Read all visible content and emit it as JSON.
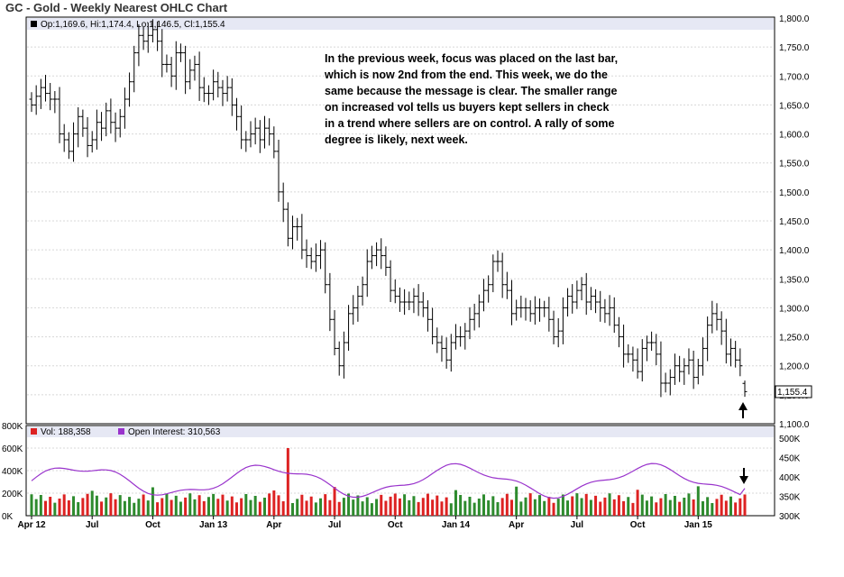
{
  "title": "GC - Gold - Weekly Nearest OHLC Chart",
  "price_legend": "Op:1,169.6, Hi:1,174.4, Lo:1,146.5, Cl:1,155.4",
  "last_price_label": "1,155.4",
  "vol_legend": "Vol: 188,358",
  "oi_legend": "Open Interest: 310,563",
  "annotation_lines": [
    "In the previous week, focus was placed on the last bar,",
    "which is now 2nd from the end.  This week, we do the",
    "same because the message is clear.  The smaller range",
    "on increased vol tells us buyers kept sellers in check",
    "in a trend where sellers are on control.  A rally of some",
    "degree is likely, next week."
  ],
  "colors": {
    "price_bar": "#000000",
    "vol_up": "#2e8b2e",
    "vol_down": "#dd2222",
    "open_interest": "#9933cc",
    "grid": "#d8d8d8",
    "legend_band": "#e6e8f4"
  },
  "chart_data": [
    {
      "type": "ohlc",
      "title": "GC - Gold - Weekly Nearest OHLC Chart",
      "ylim": [
        1100,
        1800
      ],
      "yticks": [
        "1,800.0",
        "1,750.0",
        "1,700.0",
        "1,650.0",
        "1,600.0",
        "1,550.0",
        "1,500.0",
        "1,450.0",
        "1,400.0",
        "1,350.0",
        "1,300.0",
        "1,250.0",
        "1,200.0",
        "1,150.0",
        "1,100.0"
      ],
      "x_labels": [
        "Apr 12",
        "Jul",
        "Oct",
        "Jan 13",
        "Apr",
        "Jul",
        "Oct",
        "Jan 14",
        "Apr",
        "Jul",
        "Oct",
        "Jan 15"
      ],
      "x_label_week_index": [
        0,
        13,
        26,
        39,
        52,
        65,
        78,
        91,
        104,
        117,
        130,
        143
      ],
      "last_bar": {
        "open": 1169.6,
        "high": 1174.4,
        "low": 1146.5,
        "close": 1155.4
      },
      "closes": [
        1650,
        1665,
        1680,
        1670,
        1660,
        1660,
        1600,
        1590,
        1570,
        1600,
        1630,
        1610,
        1580,
        1590,
        1620,
        1610,
        1640,
        1620,
        1610,
        1630,
        1660,
        1690,
        1740,
        1770,
        1760,
        1770,
        1780,
        1760,
        1720,
        1720,
        1700,
        1740,
        1740,
        1690,
        1710,
        1720,
        1680,
        1670,
        1670,
        1690,
        1680,
        1670,
        1680,
        1650,
        1630,
        1590,
        1590,
        1600,
        1610,
        1590,
        1610,
        1600,
        1570,
        1500,
        1470,
        1420,
        1440,
        1440,
        1400,
        1390,
        1380,
        1390,
        1400,
        1340,
        1280,
        1230,
        1200,
        1240,
        1290,
        1300,
        1320,
        1340,
        1380,
        1390,
        1400,
        1390,
        1370,
        1330,
        1320,
        1310,
        1310,
        1310,
        1320,
        1310,
        1300,
        1280,
        1250,
        1240,
        1230,
        1210,
        1240,
        1250,
        1250,
        1260,
        1280,
        1290,
        1310,
        1330,
        1340,
        1380,
        1380,
        1340,
        1330,
        1290,
        1300,
        1300,
        1300,
        1290,
        1300,
        1300,
        1300,
        1280,
        1250,
        1260,
        1300,
        1320,
        1310,
        1330,
        1340,
        1310,
        1320,
        1310,
        1300,
        1290,
        1300,
        1270,
        1250,
        1220,
        1220,
        1210,
        1190,
        1230,
        1240,
        1240,
        1220,
        1170,
        1170,
        1180,
        1200,
        1190,
        1200,
        1210,
        1180,
        1200,
        1230,
        1270,
        1290,
        1280,
        1260,
        1220,
        1230,
        1210,
        1200,
        1155.4
      ],
      "volume_k": {
        "ylim": [
          0,
          800
        ],
        "yticks": [
          "800K",
          "600K",
          "400K",
          "200K",
          "0K"
        ],
        "last": 188.358
      },
      "open_interest_k": {
        "ylim": [
          300,
          500
        ],
        "yticks": [
          "500K",
          "450K",
          "400K",
          "350K",
          "300K"
        ],
        "last": 310.563
      }
    }
  ]
}
